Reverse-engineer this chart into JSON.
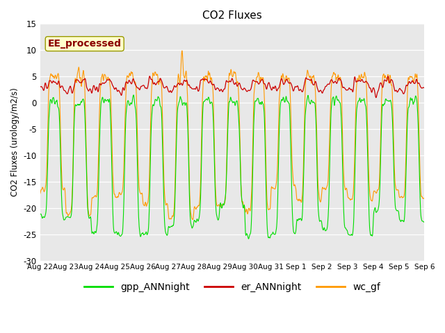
{
  "title": "CO2 Fluxes",
  "ylabel": "CO2 Fluxes (urology/m2/s)",
  "xlabel": "",
  "ylim": [
    -30,
    15
  ],
  "yticks": [
    -30,
    -25,
    -20,
    -15,
    -10,
    -5,
    0,
    5,
    10,
    15
  ],
  "plot_bg": "#e8e8e8",
  "gpp_color": "#00dd00",
  "er_color": "#cc0000",
  "wc_color": "#ff9900",
  "legend_items": [
    "gpp_ANNnight",
    "er_ANNnight",
    "wc_gf"
  ],
  "watermark_text": "EE_processed",
  "watermark_color": "#8b0000",
  "watermark_bg": "#ffffcc",
  "n_days": 15,
  "points_per_day": 96,
  "day_labels": [
    "Aug 22",
    "Aug 23",
    "Aug 24",
    "Aug 25",
    "Aug 26",
    "Aug 27",
    "Aug 28",
    "Aug 29",
    "Aug 30",
    "Aug 31",
    "Sep 1",
    "Sep 2",
    "Sep 3",
    "Sep 4",
    "Sep 5",
    "Sep 6"
  ]
}
